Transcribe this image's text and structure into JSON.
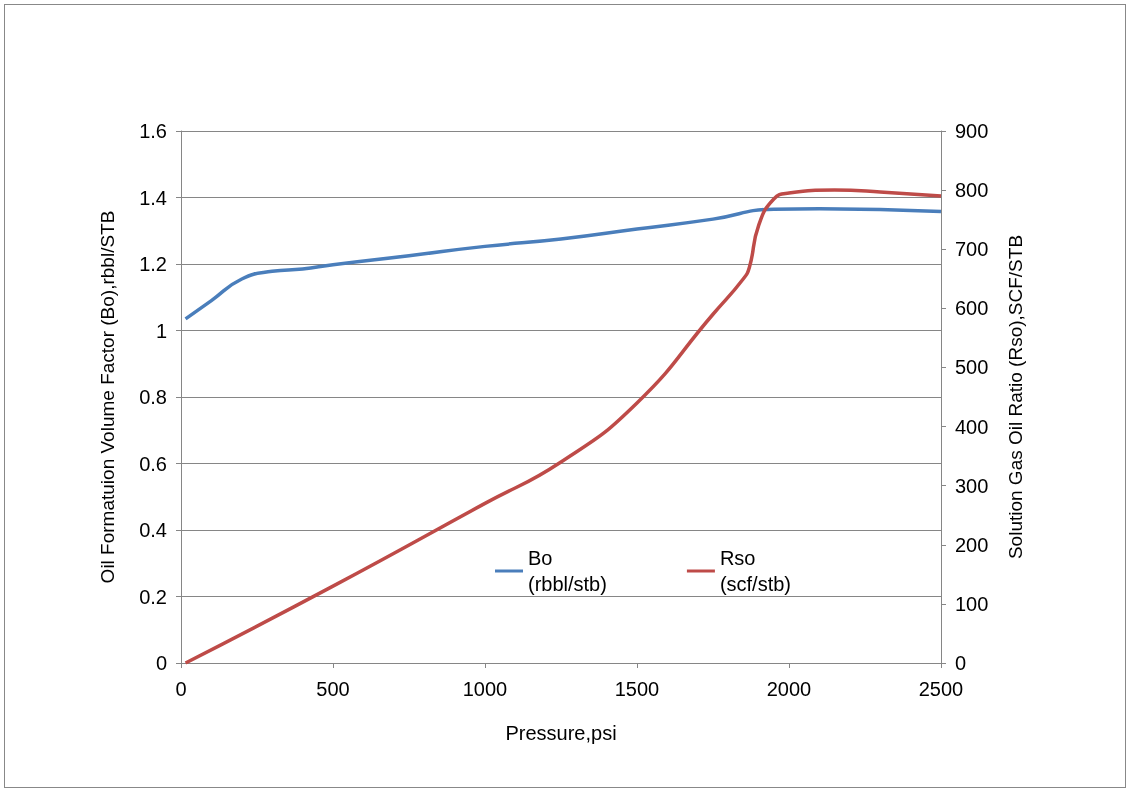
{
  "chart_data": {
    "type": "line",
    "xlabel": "Pressure,psi",
    "ylabel": "Oil Formatuion Volume Factor (Bo),rbbl/STB",
    "y2label": "Solution Gas Oil Ratio (Rso),SCF/STB",
    "xlim": [
      0,
      2500
    ],
    "xticks": [
      0,
      500,
      1000,
      1500,
      2000,
      2500
    ],
    "ylim": [
      0,
      1.6
    ],
    "yticks": [
      0,
      0.2,
      0.4,
      0.6,
      0.8,
      1,
      1.2,
      1.4,
      1.6
    ],
    "y2lim": [
      0,
      900
    ],
    "y2ticks": [
      0,
      100,
      200,
      300,
      400,
      500,
      600,
      700,
      800,
      900
    ],
    "grid": "y",
    "legend": "bottom",
    "marker": "none",
    "line_style": "solid",
    "series": [
      {
        "name": "Bo (rbbl/stb)",
        "color": "#4a7ebb",
        "x": [
          15,
          100,
          200,
          300,
          400,
          500,
          750,
          1000,
          1250,
          1500,
          1750,
          1950,
          2100,
          2500
        ],
        "values": [
          1.035,
          1.09,
          1.155,
          1.178,
          1.185,
          1.198,
          1.225,
          1.253,
          1.275,
          1.305,
          1.335,
          1.365,
          1.366,
          1.358
        ]
      },
      {
        "name": "Rso (scf/stb)",
        "color": "#be4b48",
        "axis": "y2",
        "x": [
          15,
          500,
          1000,
          1250,
          1500,
          1750,
          1850,
          1870,
          1900,
          1950,
          2000,
          2150,
          2300,
          2500
        ],
        "values": [
          0,
          130,
          270,
          340,
          440,
          590,
          650,
          670,
          740,
          785,
          795,
          800,
          797,
          790
        ]
      }
    ]
  }
}
